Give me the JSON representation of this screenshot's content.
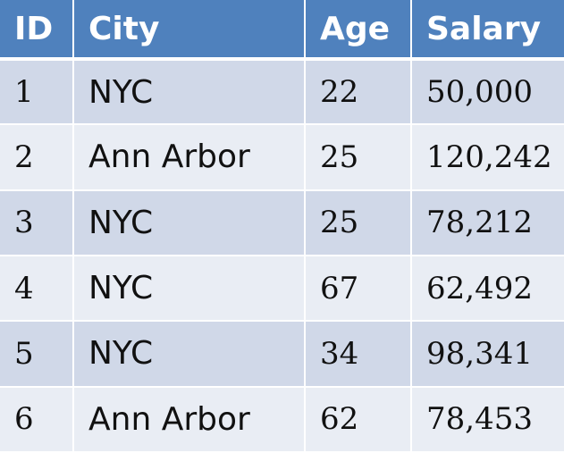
{
  "table": {
    "headers": [
      "ID",
      "City",
      "Age",
      "Salary"
    ],
    "rows": [
      [
        "1",
        "NYC",
        "22",
        "50,000"
      ],
      [
        "2",
        "Ann Arbor",
        "25",
        "120,242"
      ],
      [
        "3",
        "NYC",
        "25",
        "78,212"
      ],
      [
        "4",
        "NYC",
        "67",
        "62,492"
      ],
      [
        "5",
        "NYC",
        "34",
        "98,341"
      ],
      [
        "6",
        "Ann Arbor",
        "62",
        "78,453"
      ]
    ],
    "colors": {
      "header_bg": "#4f81bd",
      "header_text": "#ffffff",
      "row_odd_bg": "#d0d8e8",
      "row_even_bg": "#e9edf4"
    }
  }
}
